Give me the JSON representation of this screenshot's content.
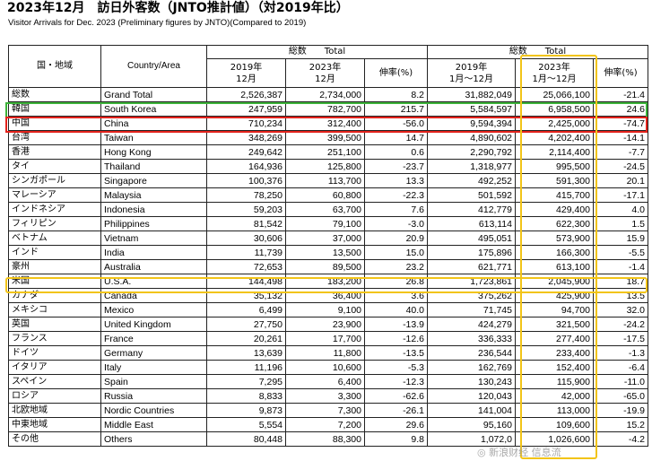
{
  "title": "2023年12月　訪日外客数（JNTO推計値）（対2019年比）",
  "subtitle": "Visitor Arrivals for Dec. 2023 (Preliminary figures by JNTO)(Compared to 2019)",
  "headers": {
    "region_jp": "国・地域",
    "country_area": "Country/Area",
    "total_month": "総数　　Total",
    "total_ytd": "総数　　Total",
    "month_2019": "2019年\n12月",
    "month_2023": "2023年\n12月",
    "growth_month": "伸率(%)",
    "ytd_2019": "2019年\n1月～12月",
    "ytd_2023": "2023年\n1月～12月",
    "growth_ytd": "伸率(%)"
  },
  "rows": [
    {
      "jp": "総数",
      "en": "Grand Total",
      "m2019": "2,526,387",
      "m2023": "2,734,000",
      "mg": "8.2",
      "y2019": "31,882,049",
      "y2023": "25,066,100",
      "yg": "-21.4"
    },
    {
      "jp": "韓国",
      "en": "South Korea",
      "m2019": "247,959",
      "m2023": "782,700",
      "mg": "215.7",
      "y2019": "5,584,597",
      "y2023": "6,958,500",
      "yg": "24.6"
    },
    {
      "jp": "中国",
      "en": "China",
      "m2019": "710,234",
      "m2023": "312,400",
      "mg": "-56.0",
      "y2019": "9,594,394",
      "y2023": "2,425,000",
      "yg": "-74.7"
    },
    {
      "jp": "台湾",
      "en": "Taiwan",
      "m2019": "348,269",
      "m2023": "399,500",
      "mg": "14.7",
      "y2019": "4,890,602",
      "y2023": "4,202,400",
      "yg": "-14.1"
    },
    {
      "jp": "香港",
      "en": "Hong Kong",
      "m2019": "249,642",
      "m2023": "251,100",
      "mg": "0.6",
      "y2019": "2,290,792",
      "y2023": "2,114,400",
      "yg": "-7.7"
    },
    {
      "jp": "タイ",
      "en": "Thailand",
      "m2019": "164,936",
      "m2023": "125,800",
      "mg": "-23.7",
      "y2019": "1,318,977",
      "y2023": "995,500",
      "yg": "-24.5"
    },
    {
      "jp": "シンガポール",
      "en": "Singapore",
      "m2019": "100,376",
      "m2023": "113,700",
      "mg": "13.3",
      "y2019": "492,252",
      "y2023": "591,300",
      "yg": "20.1"
    },
    {
      "jp": "マレーシア",
      "en": "Malaysia",
      "m2019": "78,250",
      "m2023": "60,800",
      "mg": "-22.3",
      "y2019": "501,592",
      "y2023": "415,700",
      "yg": "-17.1"
    },
    {
      "jp": "インドネシア",
      "en": "Indonesia",
      "m2019": "59,203",
      "m2023": "63,700",
      "mg": "7.6",
      "y2019": "412,779",
      "y2023": "429,400",
      "yg": "4.0"
    },
    {
      "jp": "フィリピン",
      "en": "Philippines",
      "m2019": "81,542",
      "m2023": "79,100",
      "mg": "-3.0",
      "y2019": "613,114",
      "y2023": "622,300",
      "yg": "1.5"
    },
    {
      "jp": "ベトナム",
      "en": "Vietnam",
      "m2019": "30,606",
      "m2023": "37,000",
      "mg": "20.9",
      "y2019": "495,051",
      "y2023": "573,900",
      "yg": "15.9"
    },
    {
      "jp": "インド",
      "en": "India",
      "m2019": "11,739",
      "m2023": "13,500",
      "mg": "15.0",
      "y2019": "175,896",
      "y2023": "166,300",
      "yg": "-5.5"
    },
    {
      "jp": "豪州",
      "en": "Australia",
      "m2019": "72,653",
      "m2023": "89,500",
      "mg": "23.2",
      "y2019": "621,771",
      "y2023": "613,100",
      "yg": "-1.4"
    },
    {
      "jp": "米国",
      "en": "U.S.A.",
      "m2019": "144,498",
      "m2023": "183,200",
      "mg": "26.8",
      "y2019": "1,723,861",
      "y2023": "2,045,900",
      "yg": "18.7"
    },
    {
      "jp": "カナダ",
      "en": "Canada",
      "m2019": "35,132",
      "m2023": "36,400",
      "mg": "3.6",
      "y2019": "375,262",
      "y2023": "425,900",
      "yg": "13.5"
    },
    {
      "jp": "メキシコ",
      "en": "Mexico",
      "m2019": "6,499",
      "m2023": "9,100",
      "mg": "40.0",
      "y2019": "71,745",
      "y2023": "94,700",
      "yg": "32.0"
    },
    {
      "jp": "英国",
      "en": "United Kingdom",
      "m2019": "27,750",
      "m2023": "23,900",
      "mg": "-13.9",
      "y2019": "424,279",
      "y2023": "321,500",
      "yg": "-24.2"
    },
    {
      "jp": "フランス",
      "en": "France",
      "m2019": "20,261",
      "m2023": "17,700",
      "mg": "-12.6",
      "y2019": "336,333",
      "y2023": "277,400",
      "yg": "-17.5"
    },
    {
      "jp": "ドイツ",
      "en": "Germany",
      "m2019": "13,639",
      "m2023": "11,800",
      "mg": "-13.5",
      "y2019": "236,544",
      "y2023": "233,400",
      "yg": "-1.3"
    },
    {
      "jp": "イタリア",
      "en": "Italy",
      "m2019": "11,196",
      "m2023": "10,600",
      "mg": "-5.3",
      "y2019": "162,769",
      "y2023": "152,400",
      "yg": "-6.4"
    },
    {
      "jp": "スペイン",
      "en": "Spain",
      "m2019": "7,295",
      "m2023": "6,400",
      "mg": "-12.3",
      "y2019": "130,243",
      "y2023": "115,900",
      "yg": "-11.0"
    },
    {
      "jp": "ロシア",
      "en": "Russia",
      "m2019": "8,833",
      "m2023": "3,300",
      "mg": "-62.6",
      "y2019": "120,043",
      "y2023": "42,000",
      "yg": "-65.0"
    },
    {
      "jp": "北欧地域",
      "en": "Nordic Countries",
      "m2019": "9,873",
      "m2023": "7,300",
      "mg": "-26.1",
      "y2019": "141,004",
      "y2023": "113,000",
      "yg": "-19.9"
    },
    {
      "jp": "中東地域",
      "en": "Middle East",
      "m2019": "5,554",
      "m2023": "7,200",
      "mg": "29.6",
      "y2019": "95,160",
      "y2023": "109,600",
      "yg": "15.2"
    },
    {
      "jp": "その他",
      "en": "Others",
      "m2019": "80,448",
      "m2023": "88,300",
      "mg": "9.8",
      "y2019": "1,072,0",
      "y2023": "1,026,600",
      "yg": "-4.2"
    }
  ],
  "highlight_colors": {
    "south_korea": "#3db33a",
    "china": "#e3231c",
    "usa_and_ytd_2023": "#f2c418"
  },
  "watermark": "◎ 新浪财经 信息流"
}
